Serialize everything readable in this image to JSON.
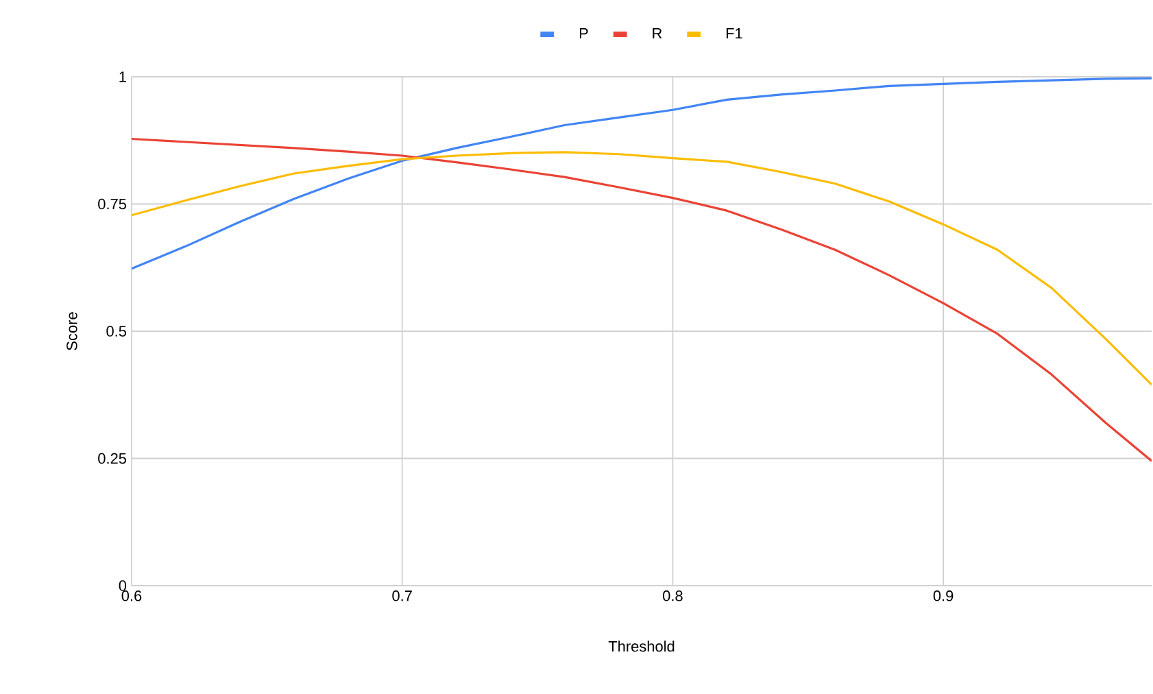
{
  "chart_data": {
    "type": "line",
    "xlabel": "Threshold",
    "ylabel": "Score",
    "x": [
      0.6,
      0.62,
      0.64,
      0.66,
      0.68,
      0.7,
      0.72,
      0.74,
      0.76,
      0.78,
      0.8,
      0.82,
      0.84,
      0.86,
      0.88,
      0.9,
      0.92,
      0.94,
      0.96,
      0.977
    ],
    "series": [
      {
        "name": "P",
        "color": "#4285f4",
        "values": [
          0.623,
          0.667,
          0.715,
          0.76,
          0.8,
          0.835,
          0.86,
          0.882,
          0.905,
          0.92,
          0.935,
          0.955,
          0.965,
          0.973,
          0.982,
          0.986,
          0.99,
          0.993,
          0.996,
          0.997
        ]
      },
      {
        "name": "R",
        "color": "#ea4335",
        "values": [
          0.878,
          0.872,
          0.866,
          0.86,
          0.853,
          0.845,
          0.832,
          0.818,
          0.803,
          0.783,
          0.762,
          0.737,
          0.7,
          0.66,
          0.61,
          0.555,
          0.495,
          0.415,
          0.32,
          0.245
        ]
      },
      {
        "name": "F1",
        "color": "#fbbc04",
        "values": [
          0.728,
          0.757,
          0.785,
          0.81,
          0.825,
          0.838,
          0.845,
          0.85,
          0.852,
          0.848,
          0.84,
          0.833,
          0.813,
          0.79,
          0.755,
          0.71,
          0.66,
          0.585,
          0.485,
          0.395
        ]
      }
    ],
    "xlim": [
      0.6,
      0.977
    ],
    "ylim": [
      0,
      1
    ],
    "xticks": [
      0.6,
      0.7,
      0.8,
      0.9
    ],
    "yticks": [
      0,
      0.25,
      0.5,
      0.75,
      1
    ],
    "grid": true,
    "legend": "top",
    "marker": "none",
    "line_style": "solid"
  }
}
